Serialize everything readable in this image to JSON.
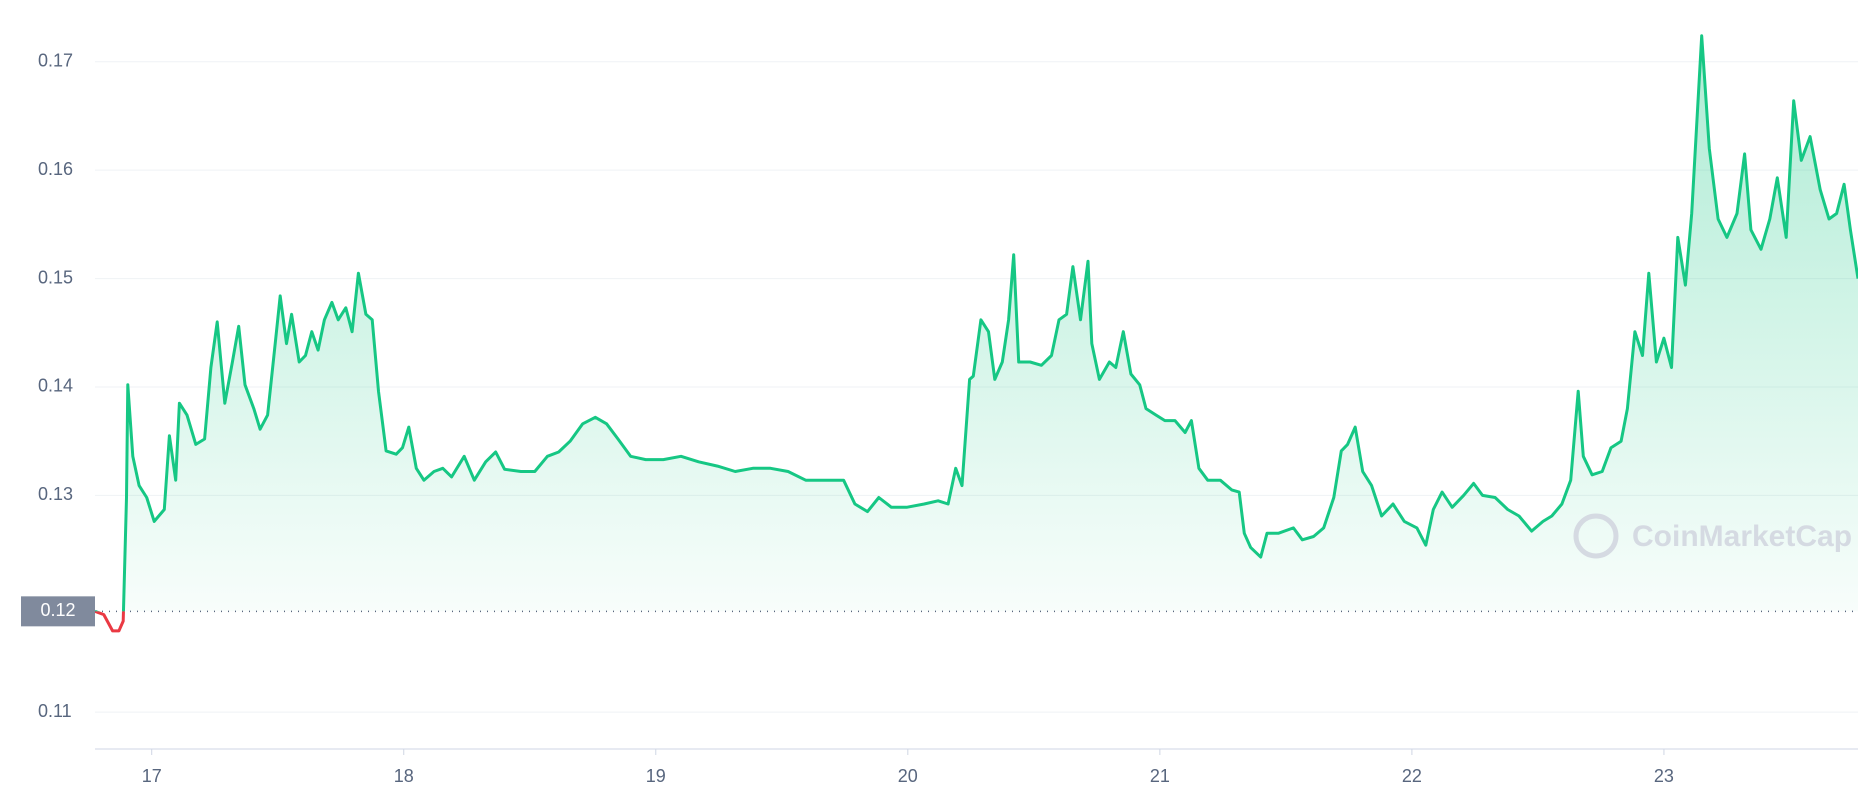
{
  "chart_data": {
    "type": "line",
    "x": [
      16.775,
      16.81,
      16.845,
      16.87,
      16.887,
      16.9,
      16.905,
      16.925,
      16.95,
      16.98,
      17.01,
      17.05,
      17.07,
      17.095,
      17.11,
      17.14,
      17.175,
      17.21,
      17.235,
      17.26,
      17.29,
      17.32,
      17.345,
      17.37,
      17.405,
      17.43,
      17.46,
      17.49,
      17.51,
      17.535,
      17.555,
      17.585,
      17.61,
      17.635,
      17.66,
      17.685,
      17.715,
      17.74,
      17.77,
      17.795,
      17.82,
      17.85,
      17.875,
      17.9,
      17.93,
      17.97,
      17.995,
      18.02,
      18.05,
      18.08,
      18.12,
      18.155,
      18.19,
      18.24,
      18.28,
      18.325,
      18.365,
      18.4,
      18.465,
      18.52,
      18.57,
      18.615,
      18.66,
      18.71,
      18.76,
      18.805,
      18.85,
      18.9,
      18.96,
      19.03,
      19.1,
      19.17,
      19.245,
      19.315,
      19.385,
      19.455,
      19.525,
      19.595,
      19.67,
      19.745,
      19.79,
      19.84,
      19.885,
      19.935,
      19.995,
      20.065,
      20.12,
      20.16,
      20.19,
      20.215,
      20.245,
      20.26,
      20.29,
      20.32,
      20.345,
      20.375,
      20.4,
      20.42,
      20.44,
      20.485,
      20.53,
      20.57,
      20.6,
      20.63,
      20.655,
      20.685,
      20.715,
      20.73,
      20.76,
      20.8,
      20.825,
      20.855,
      20.885,
      20.92,
      20.945,
      20.985,
      21.02,
      21.06,
      21.1,
      21.125,
      21.155,
      21.19,
      21.24,
      21.285,
      21.315,
      21.335,
      21.36,
      21.4,
      21.425,
      21.47,
      21.53,
      21.565,
      21.61,
      21.65,
      21.69,
      21.72,
      21.745,
      21.775,
      21.805,
      21.84,
      21.88,
      21.925,
      21.97,
      22.02,
      22.055,
      22.085,
      22.12,
      22.16,
      22.205,
      22.245,
      22.28,
      22.33,
      22.38,
      22.425,
      22.475,
      22.52,
      22.555,
      22.595,
      22.63,
      22.66,
      22.68,
      22.715,
      22.755,
      22.79,
      22.83,
      22.855,
      22.885,
      22.915,
      22.94,
      22.97,
      23.0,
      23.03,
      23.055,
      23.085,
      23.11,
      23.15,
      23.18,
      23.215,
      23.25,
      23.29,
      23.32,
      23.345,
      23.385,
      23.42,
      23.45,
      23.485,
      23.515,
      23.545,
      23.58,
      23.62,
      23.655,
      23.685,
      23.715,
      23.74,
      23.77
    ],
    "values": [
      0.1193,
      0.119,
      0.1175,
      0.1175,
      0.1184,
      0.1298,
      0.1402,
      0.1336,
      0.1309,
      0.1298,
      0.1276,
      0.1287,
      0.1355,
      0.1314,
      0.1385,
      0.1374,
      0.1347,
      0.1352,
      0.1418,
      0.146,
      0.1385,
      0.1423,
      0.1456,
      0.1402,
      0.138,
      0.1361,
      0.1374,
      0.144,
      0.1484,
      0.144,
      0.1467,
      0.1423,
      0.1429,
      0.1451,
      0.1434,
      0.1462,
      0.1478,
      0.1462,
      0.1473,
      0.1451,
      0.1505,
      0.1467,
      0.1462,
      0.1396,
      0.1341,
      0.1338,
      0.1344,
      0.1363,
      0.1325,
      0.1314,
      0.1322,
      0.1325,
      0.1317,
      0.1336,
      0.1314,
      0.1331,
      0.134,
      0.1324,
      0.1322,
      0.1322,
      0.1336,
      0.134,
      0.135,
      0.1366,
      0.1372,
      0.1366,
      0.1352,
      0.1336,
      0.1333,
      0.1333,
      0.1336,
      0.1331,
      0.1327,
      0.1322,
      0.1325,
      0.1325,
      0.1322,
      0.1314,
      0.1314,
      0.1314,
      0.1292,
      0.1285,
      0.1298,
      0.1289,
      0.1289,
      0.1292,
      0.1295,
      0.1292,
      0.1325,
      0.1309,
      0.1407,
      0.141,
      0.1462,
      0.1451,
      0.1407,
      0.1423,
      0.1462,
      0.1522,
      0.1423,
      0.1423,
      0.142,
      0.1429,
      0.1462,
      0.1467,
      0.1511,
      0.1462,
      0.1516,
      0.144,
      0.1407,
      0.1423,
      0.1418,
      0.1451,
      0.1412,
      0.1402,
      0.138,
      0.1374,
      0.1369,
      0.1369,
      0.1358,
      0.1369,
      0.1325,
      0.1314,
      0.1314,
      0.1305,
      0.1303,
      0.1265,
      0.1252,
      0.1243,
      0.1265,
      0.1265,
      0.127,
      0.1259,
      0.1262,
      0.127,
      0.1298,
      0.1341,
      0.1347,
      0.1363,
      0.1322,
      0.1309,
      0.1281,
      0.1292,
      0.1276,
      0.127,
      0.1254,
      0.1287,
      0.1303,
      0.1289,
      0.13,
      0.1311,
      0.13,
      0.1298,
      0.1287,
      0.1281,
      0.1267,
      0.1276,
      0.1281,
      0.1292,
      0.1314,
      0.1396,
      0.1336,
      0.1319,
      0.1322,
      0.1344,
      0.135,
      0.138,
      0.1451,
      0.1429,
      0.1505,
      0.1423,
      0.1445,
      0.1418,
      0.1538,
      0.1494,
      0.156,
      0.1724,
      0.162,
      0.1555,
      0.1538,
      0.156,
      0.1615,
      0.1545,
      0.1527,
      0.1555,
      0.1593,
      0.1538,
      0.1664,
      0.1609,
      0.1631,
      0.1582,
      0.1555,
      0.156,
      0.1587,
      0.1545,
      0.15
    ],
    "up_color": "#16c784",
    "down_color": "#ea3943",
    "reference": {
      "value": 0.1193,
      "label": "0.12"
    },
    "xlim": [
      16.775,
      23.77
    ],
    "xticks": [
      17,
      18,
      19,
      20,
      21,
      22,
      23
    ],
    "ylim": [
      0.1066,
      0.1757
    ],
    "yticks": [
      0.11,
      0.13,
      0.14,
      0.15,
      0.16,
      0.17
    ],
    "grid": true,
    "watermark": "CoinMarketCap"
  }
}
